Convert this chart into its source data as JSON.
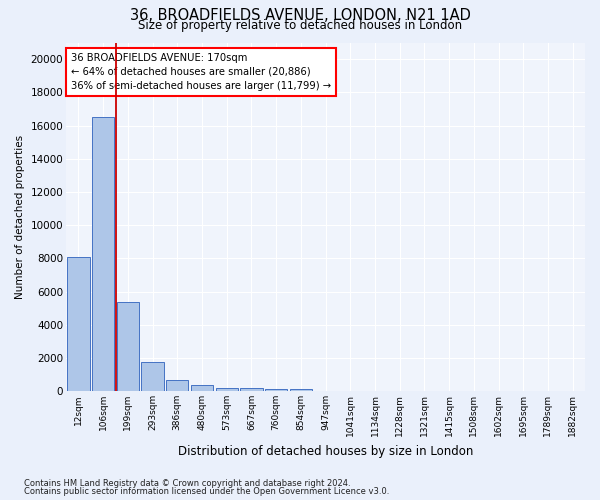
{
  "title1": "36, BROADFIELDS AVENUE, LONDON, N21 1AD",
  "title2": "Size of property relative to detached houses in London",
  "xlabel": "Distribution of detached houses by size in London",
  "ylabel": "Number of detached properties",
  "bar_labels": [
    "12sqm",
    "106sqm",
    "199sqm",
    "293sqm",
    "386sqm",
    "480sqm",
    "573sqm",
    "667sqm",
    "760sqm",
    "854sqm",
    "947sqm",
    "1041sqm",
    "1134sqm",
    "1228sqm",
    "1321sqm",
    "1415sqm",
    "1508sqm",
    "1602sqm",
    "1695sqm",
    "1789sqm",
    "1882sqm"
  ],
  "bar_values": [
    8100,
    16500,
    5350,
    1750,
    700,
    350,
    200,
    170,
    140,
    120,
    0,
    0,
    0,
    0,
    0,
    0,
    0,
    0,
    0,
    0,
    0
  ],
  "bar_color": "#aec6e8",
  "bar_edge_color": "#4472c4",
  "annotation_line1": "36 BROADFIELDS AVENUE: 170sqm",
  "annotation_line2": "← 64% of detached houses are smaller (20,886)",
  "annotation_line3": "36% of semi-detached houses are larger (11,799) →",
  "marker_color": "#cc0000",
  "ylim": [
    0,
    21000
  ],
  "yticks": [
    0,
    2000,
    4000,
    6000,
    8000,
    10000,
    12000,
    14000,
    16000,
    18000,
    20000
  ],
  "footer1": "Contains HM Land Registry data © Crown copyright and database right 2024.",
  "footer2": "Contains public sector information licensed under the Open Government Licence v3.0.",
  "bg_color": "#eaf0fb",
  "plot_bg_color": "#f0f4fc"
}
